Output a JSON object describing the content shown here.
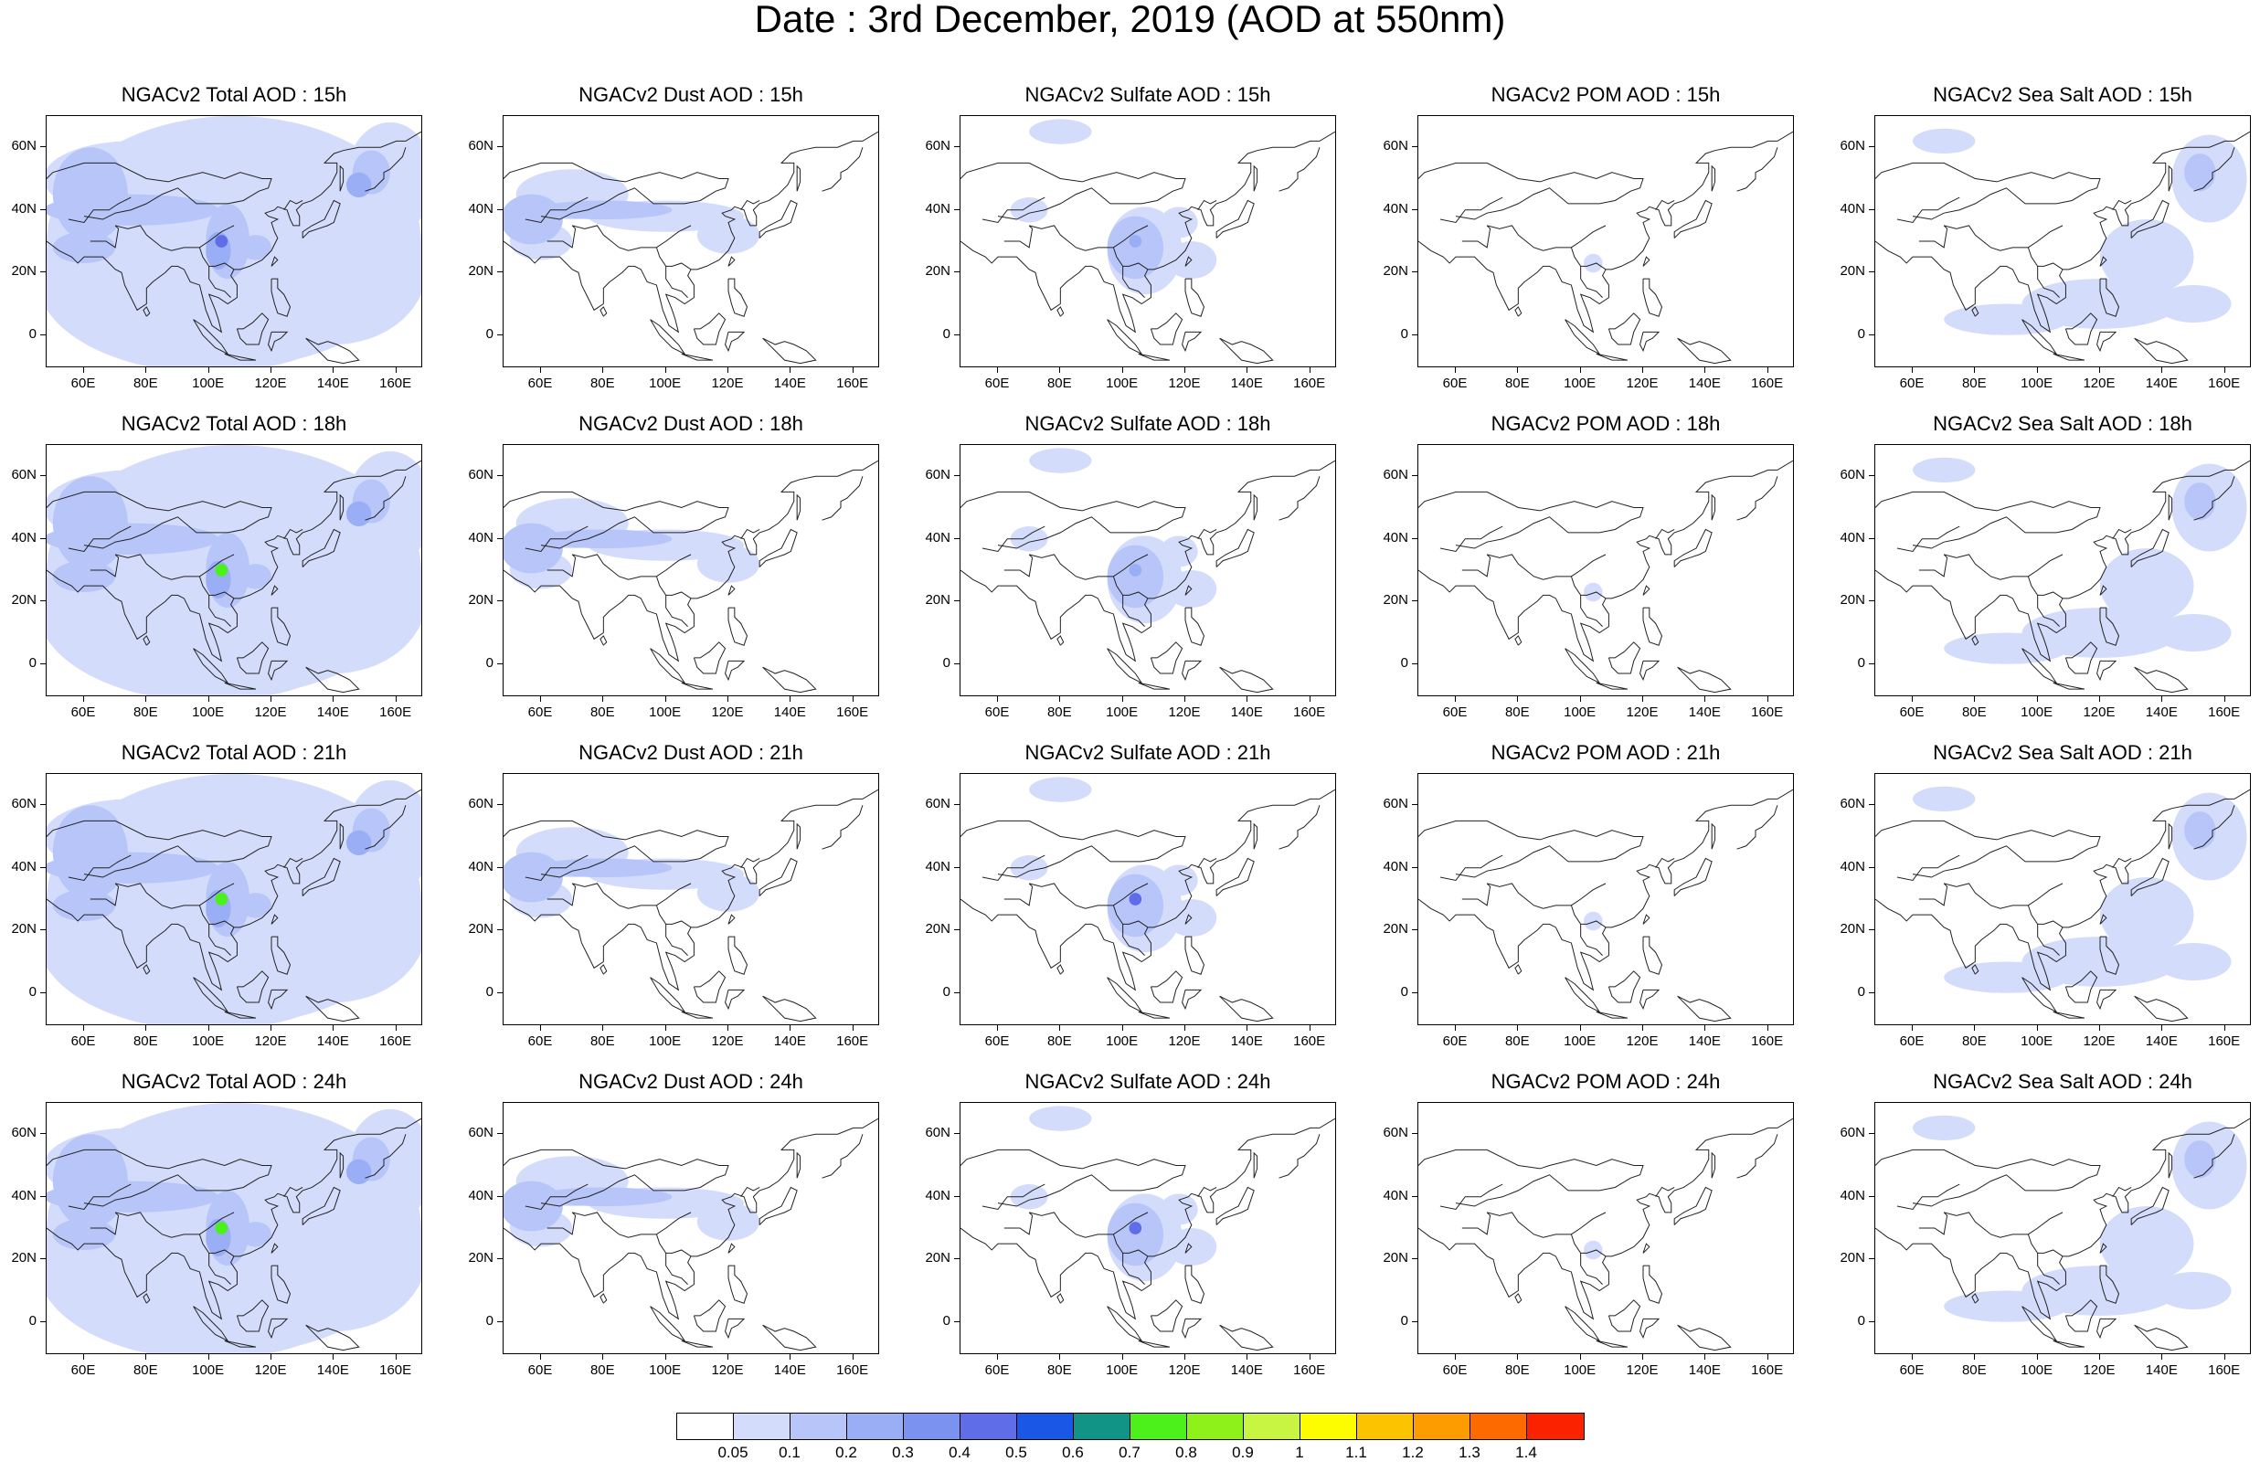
{
  "title": "Date : 3rd December, 2019 (AOD at 550nm)",
  "rows": [
    {
      "hour": "15h",
      "titles": [
        "NGACv2 Total AOD : 15h",
        "NGACv2 Dust AOD : 15h",
        "NGACv2 Sulfate AOD : 15h",
        "NGACv2 POM AOD : 15h",
        "NGACv2 Sea Salt AOD : 15h"
      ]
    },
    {
      "hour": "18h",
      "titles": [
        "NGACv2 Total AOD : 18h",
        "NGACv2 Dust AOD : 18h",
        "NGACv2 Sulfate AOD : 18h",
        "NGACv2 POM AOD : 18h",
        "NGACv2 Sea Salt AOD : 18h"
      ]
    },
    {
      "hour": "21h",
      "titles": [
        "NGACv2 Total AOD : 21h",
        "NGACv2 Dust AOD : 21h",
        "NGACv2 Sulfate AOD : 21h",
        "NGACv2 POM AOD : 21h",
        "NGACv2 Sea Salt AOD : 21h"
      ]
    },
    {
      "hour": "24h",
      "titles": [
        "NGACv2 Total AOD : 24h",
        "NGACv2 Dust AOD : 24h",
        "NGACv2 Sulfate AOD : 24h",
        "NGACv2 POM AOD : 24h",
        "NGACv2 Sea Salt  AOD : 24h"
      ]
    }
  ],
  "lat_labels": [
    "60N",
    "40N",
    "20N",
    "0"
  ],
  "lon_labels": [
    "60E",
    "80E",
    "100E",
    "120E",
    "140E",
    "160E"
  ],
  "colorbar": {
    "labels": [
      "0.05",
      "0.1",
      "0.2",
      "0.3",
      "0.4",
      "0.5",
      "0.6",
      "0.7",
      "0.8",
      "0.9",
      "1",
      "1.1",
      "1.2",
      "1.3",
      "1.4"
    ],
    "colors": [
      "#ffffff",
      "#d4dcfb",
      "#b7c5f9",
      "#9aaef5",
      "#7c92f0",
      "#5f6ee8",
      "#1b57e6",
      "#119386",
      "#4cf01a",
      "#8ef21a",
      "#c8f542",
      "#fdfd00",
      "#fcc400",
      "#fc9c00",
      "#fc6a00",
      "#fb2200"
    ]
  },
  "species_colors": {
    "light": "#d4dcfb",
    "medium": "#b7c5f9",
    "strong": "#9aaef5",
    "peak": "#5f6ee8",
    "hotspot": "#4cf01a"
  }
}
